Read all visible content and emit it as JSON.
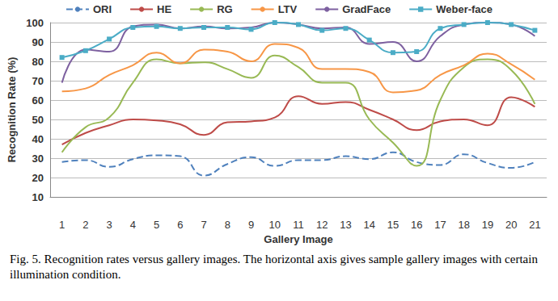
{
  "chart_data": {
    "type": "line",
    "caption": "Fig. 5.  Recognition rates versus gallery images. The horizontal axis gives sample gallery images with certain illumination condition.",
    "x_label": "Gallery Image",
    "y_label": "Recognition Rate (%)",
    "categories": [
      "1",
      "2",
      "3",
      "4",
      "5",
      "6",
      "7",
      "8",
      "9",
      "10",
      "11",
      "12",
      "13",
      "14",
      "15",
      "16",
      "17",
      "18",
      "19",
      "20",
      "21"
    ],
    "ylim": [
      10,
      100
    ],
    "yticks": [
      10,
      20,
      30,
      40,
      50,
      60,
      70,
      80,
      90,
      100
    ],
    "grid": true,
    "legend": "top",
    "series": [
      {
        "name": "ORI",
        "color": "#4f81bd",
        "line_style": "dashed",
        "marker": "none",
        "values": [
          28,
          29,
          25.5,
          29.5,
          31.5,
          31,
          21,
          27,
          30.5,
          26,
          29,
          29,
          31,
          29.5,
          33,
          28,
          26.5,
          32,
          27.5,
          25,
          28
        ]
      },
      {
        "name": "HE",
        "color": "#be4b48",
        "line_style": "solid",
        "marker": "none",
        "values": [
          37,
          43,
          47,
          50,
          49.5,
          47.5,
          42,
          48.5,
          49,
          51,
          62,
          58,
          59,
          55,
          50,
          44.5,
          49,
          50,
          47,
          61.5,
          56.5
        ]
      },
      {
        "name": "RG",
        "color": "#98b954",
        "line_style": "solid",
        "marker": "none",
        "values": [
          33,
          46,
          51,
          69,
          81,
          79,
          79.5,
          76,
          71.5,
          83,
          77,
          69,
          69,
          50,
          38,
          26,
          60,
          77,
          81,
          75.5,
          58
        ]
      },
      {
        "name": "LTV",
        "color": "#f79646",
        "line_style": "solid",
        "marker": "none",
        "values": [
          64.5,
          66,
          73,
          78,
          84.5,
          79,
          86,
          85,
          80,
          89,
          87,
          76,
          76,
          74.5,
          64,
          65,
          73,
          78,
          84,
          78.5,
          70.5
        ]
      },
      {
        "name": "GradFace",
        "color": "#7d60a0",
        "line_style": "solid",
        "marker": "none",
        "values": [
          69,
          86,
          85,
          98,
          99,
          97,
          98,
          97,
          97.5,
          100,
          99,
          97,
          97.5,
          89,
          90,
          80,
          93,
          99,
          100,
          99,
          93
        ]
      },
      {
        "name": "Weber-face",
        "color": "#4bacc6",
        "line_style": "solid",
        "marker": "square",
        "values": [
          82,
          85.5,
          91.5,
          97.5,
          98,
          97,
          97.5,
          97.5,
          96.5,
          100,
          99,
          96,
          97,
          91,
          84.5,
          85,
          97,
          99,
          100,
          99,
          96
        ]
      }
    ]
  }
}
